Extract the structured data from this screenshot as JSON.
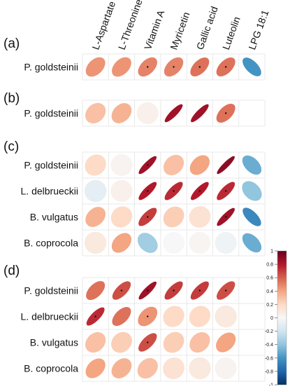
{
  "chart_data": {
    "type": "heatmap",
    "subtype": "correlation-ellipse",
    "columns": [
      "L-Aspartate",
      "L-Threonine",
      "Vitamin A",
      "Myricetin",
      "Gallic acid",
      "Luteolin",
      "LPG 18:1"
    ],
    "colorbar": {
      "range": [
        -1,
        1
      ],
      "ticks": [
        "1",
        "0.8",
        "0.6",
        "0.4",
        "0.2",
        "0",
        "-0.2",
        "-0.4",
        "-0.6",
        "-0.8",
        "-1"
      ],
      "low_color": "#053061",
      "mid_color": "#f7f7f7",
      "high_color": "#67001f"
    },
    "panels": [
      {
        "label": "(a)",
        "rows": [
          {
            "name": "P. goldsteinii",
            "values": [
              0.45,
              0.45,
              0.5,
              0.5,
              0.55,
              0.55,
              -0.6
            ],
            "sig": [
              false,
              false,
              true,
              true,
              true,
              true,
              false
            ]
          }
        ]
      },
      {
        "label": "(b)",
        "rows": [
          {
            "name": "P. goldsteinii",
            "values": [
              0.3,
              0.35,
              0.05,
              0.85,
              0.85,
              0.55,
              null
            ],
            "sig": [
              false,
              false,
              false,
              false,
              false,
              true,
              false
            ]
          }
        ]
      },
      {
        "label": "(c)",
        "rows": [
          {
            "name": "P. goldsteinii",
            "values": [
              0.2,
              0.03,
              0.85,
              0.3,
              0.4,
              0.9,
              -0.5
            ],
            "sig": [
              false,
              false,
              true,
              false,
              false,
              false,
              false
            ]
          },
          {
            "name": "L. delbrueckii",
            "values": [
              -0.1,
              0.05,
              0.8,
              0.75,
              0.8,
              0.75,
              -0.4
            ],
            "sig": [
              false,
              false,
              true,
              true,
              true,
              true,
              false
            ]
          },
          {
            "name": "B. vulgatus",
            "values": [
              0.35,
              0.2,
              0.7,
              0.25,
              0.15,
              0.85,
              -0.65
            ],
            "sig": [
              false,
              false,
              true,
              false,
              false,
              true,
              false
            ]
          },
          {
            "name": "B. coprocola",
            "values": [
              0.1,
              0.4,
              -0.35,
              0.0,
              0.02,
              -0.05,
              -0.5
            ],
            "sig": [
              false,
              false,
              false,
              false,
              false,
              false,
              false
            ]
          }
        ]
      },
      {
        "label": "(d)",
        "rows": [
          {
            "name": "P. goldsteinii",
            "values": [
              0.55,
              0.65,
              0.85,
              0.7,
              0.7,
              0.65,
              null
            ],
            "sig": [
              false,
              true,
              true,
              true,
              true,
              true,
              false
            ]
          },
          {
            "name": "L. delbrueckii",
            "values": [
              0.75,
              0.55,
              0.45,
              0.2,
              0.2,
              0.1,
              null
            ],
            "sig": [
              true,
              false,
              true,
              false,
              false,
              false,
              false
            ]
          },
          {
            "name": "B. vulgatus",
            "values": [
              0.3,
              0.25,
              0.65,
              0.25,
              0.3,
              0.4,
              null
            ],
            "sig": [
              false,
              false,
              true,
              false,
              false,
              false,
              false
            ]
          },
          {
            "name": "B. coprocola",
            "values": [
              0.4,
              0.35,
              0.3,
              0.15,
              0.1,
              0.03,
              null
            ],
            "sig": [
              false,
              false,
              false,
              false,
              false,
              false,
              false
            ]
          }
        ]
      }
    ]
  }
}
